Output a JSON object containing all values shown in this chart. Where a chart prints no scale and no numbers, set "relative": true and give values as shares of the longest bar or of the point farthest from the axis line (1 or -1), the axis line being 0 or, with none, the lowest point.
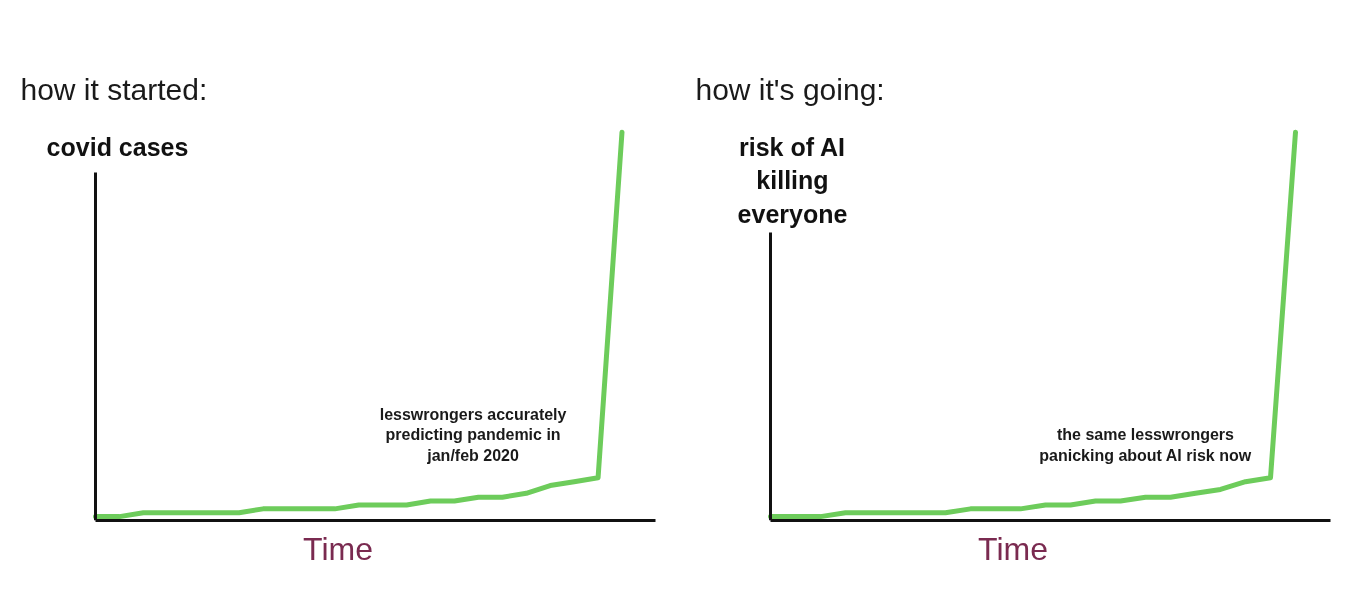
{
  "chart_data": [
    {
      "type": "line",
      "title": "how it started:",
      "ylabel": "covid cases",
      "xlabel": "Time",
      "relative": true,
      "categories": [
        null,
        null,
        null,
        null,
        null,
        null,
        null,
        null,
        null,
        null,
        null,
        null,
        null,
        null,
        null,
        null,
        null,
        null,
        null,
        null,
        null,
        null,
        null
      ],
      "series": [
        {
          "color": "#6dcc5b",
          "values": [
            0.01,
            0.01,
            0.02,
            0.02,
            0.02,
            0.02,
            0.02,
            0.03,
            0.03,
            0.03,
            0.03,
            0.04,
            0.04,
            0.04,
            0.05,
            0.05,
            0.06,
            0.06,
            0.07,
            0.09,
            0.1,
            0.11,
            1
          ]
        }
      ],
      "annotations": [
        "lesswrongers accurately predicting pandemic in jan/feb 2020"
      ]
    },
    {
      "type": "line",
      "title": "how it's going:",
      "ylabel": "risk of AI killing everyone",
      "xlabel": "Time",
      "relative": true,
      "categories": [
        null,
        null,
        null,
        null,
        null,
        null,
        null,
        null,
        null,
        null,
        null,
        null,
        null,
        null,
        null,
        null,
        null,
        null,
        null,
        null,
        null,
        null
      ],
      "series": [
        {
          "color": "#6dcc5b",
          "values": [
            0.01,
            0.01,
            0.01,
            0.02,
            0.02,
            0.02,
            0.02,
            0.02,
            0.03,
            0.03,
            0.03,
            0.04,
            0.04,
            0.05,
            0.05,
            0.06,
            0.06,
            0.07,
            0.08,
            0.1,
            0.11,
            1
          ]
        }
      ],
      "annotations": [
        "the same lesswrongers panicking about AI risk now"
      ]
    }
  ]
}
